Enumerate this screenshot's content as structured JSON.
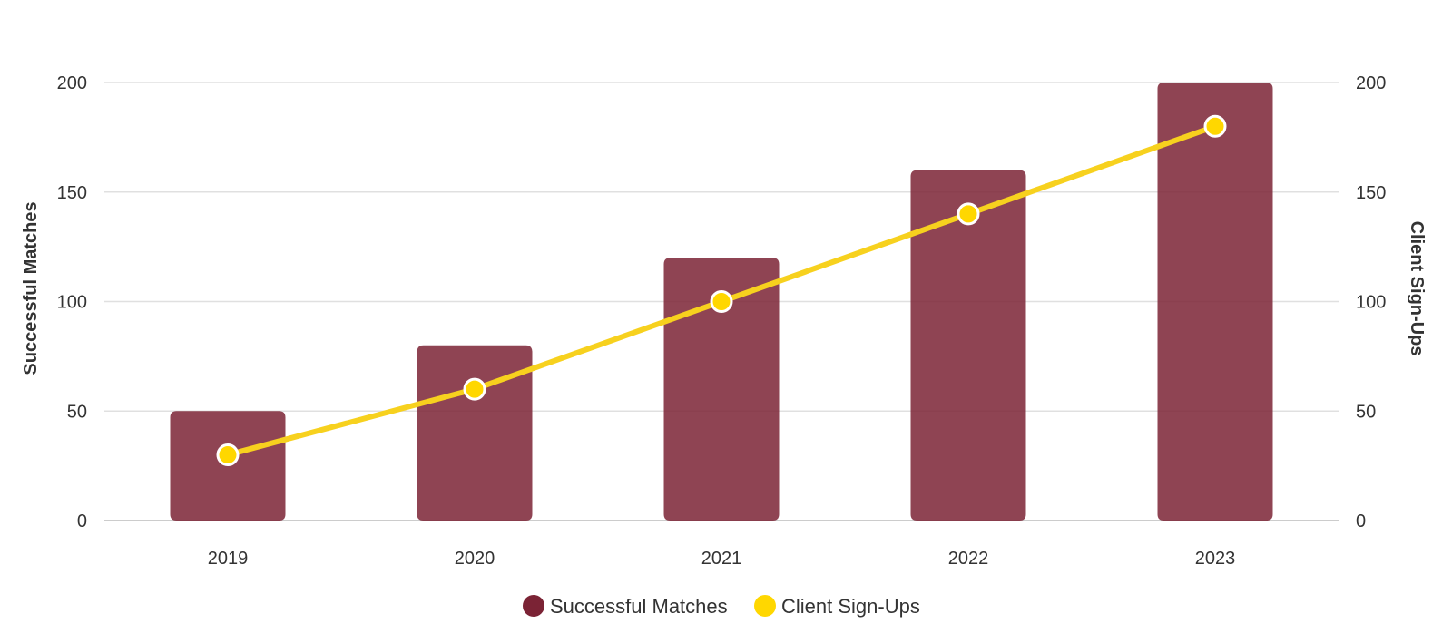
{
  "chart_data": {
    "type": "bar",
    "categories": [
      "2019",
      "2020",
      "2021",
      "2022",
      "2023"
    ],
    "series": [
      {
        "name": "Successful Matches",
        "type": "bar",
        "axis": "left",
        "color": "#7b2335",
        "values": [
          50,
          80,
          120,
          160,
          200
        ]
      },
      {
        "name": "Client Sign-Ups",
        "type": "line",
        "axis": "right",
        "color": "#ffd700",
        "values": [
          30,
          60,
          100,
          140,
          180
        ]
      }
    ],
    "ylabel": "Successful Matches",
    "y2label": "Client Sign-Ups",
    "ylim": [
      0,
      200
    ],
    "y2lim": [
      0,
      200
    ],
    "yticks": [
      "0",
      "50",
      "100",
      "150",
      "200"
    ],
    "y2ticks": [
      "0",
      "50",
      "100",
      "150",
      "200"
    ],
    "grid": true,
    "legend_position": "bottom-center"
  }
}
